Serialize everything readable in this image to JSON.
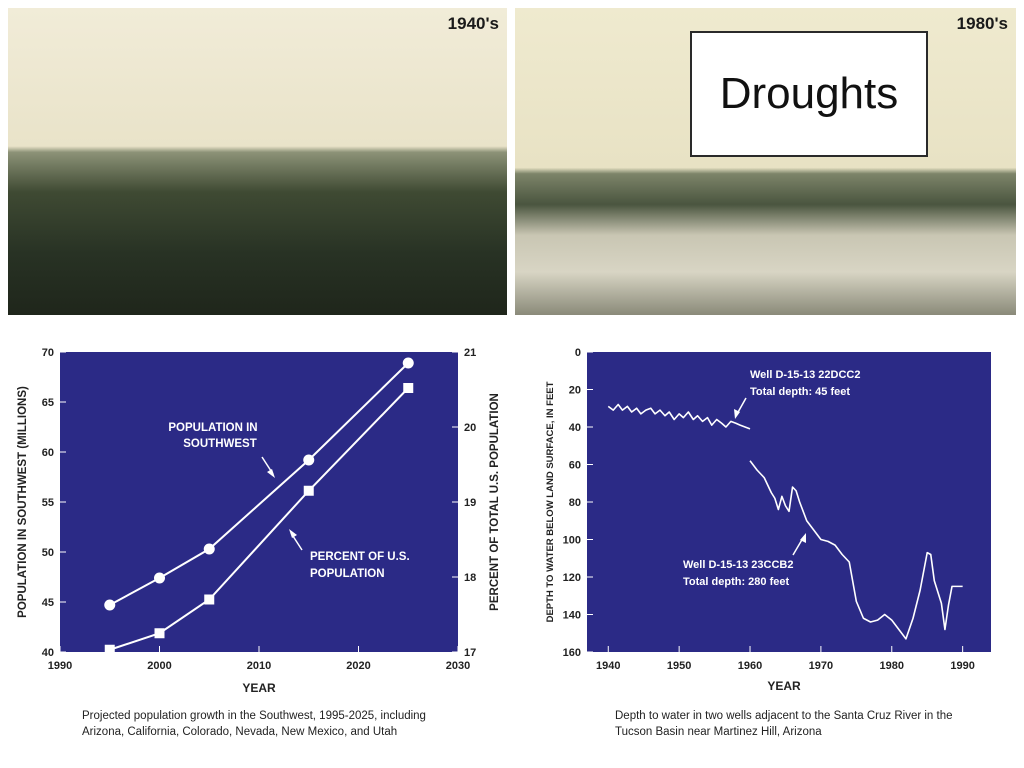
{
  "slide_title": "Droughts",
  "photos": [
    {
      "label": "1940's",
      "description_icon": "photo-landscape-1940s"
    },
    {
      "label": "1980's",
      "description_icon": "photo-landscape-1980s"
    }
  ],
  "colors": {
    "plot_bg": "#2b2a86",
    "line": "#ffffff"
  },
  "captions": {
    "left": [
      "Projected population growth in the Southwest, 1995-2025, including",
      "Arizona, California, Colorado, Nevada, New Mexico, and Utah"
    ],
    "right": [
      "Depth to water in two wells adjacent to the Santa Cruz River in the",
      "Tucson Basin near Martinez Hill, Arizona"
    ]
  },
  "chart_data": [
    {
      "type": "line",
      "xlabel": "YEAR",
      "ylabel": "POPULATION IN SOUTHWEST (MILLIONS)",
      "y2label": "PERCENT OF TOTAL U.S. POPULATION",
      "xlim": [
        1990,
        2030
      ],
      "ylim": [
        40,
        70
      ],
      "y2lim": [
        17,
        21
      ],
      "xticks": [
        "1990",
        "2000",
        "2010",
        "2020",
        "2030"
      ],
      "yticks": [
        "40",
        "45",
        "50",
        "55",
        "60",
        "65",
        "70"
      ],
      "y2ticks": [
        "17",
        "18",
        "19",
        "20",
        "21"
      ],
      "series": [
        {
          "name": "POPULATION IN SOUTHWEST",
          "axis": "left",
          "marker": "circle",
          "x": [
            1995,
            2000,
            2005,
            2015,
            2025
          ],
          "values": [
            44.7,
            47.4,
            50.3,
            59.2,
            68.9
          ]
        },
        {
          "name": "PERCENT OF U.S. POPULATION",
          "axis": "right",
          "marker": "square",
          "x": [
            1995,
            2000,
            2005,
            2015,
            2025
          ],
          "values": [
            17.03,
            17.25,
            17.7,
            19.15,
            20.52
          ]
        }
      ],
      "annotations": [
        {
          "lines": [
            "POPULATION IN",
            "SOUTHWEST"
          ],
          "series": 0
        },
        {
          "lines": [
            "PERCENT OF U.S.",
            "POPULATION"
          ],
          "series": 1
        }
      ],
      "grid": false
    },
    {
      "type": "line",
      "xlabel": "YEAR",
      "ylabel": "DEPTH TO WATER BELOW LAND SURFACE, IN FEET",
      "xlim": [
        1937,
        1994
      ],
      "ylim": [
        0,
        160
      ],
      "y_inverted": true,
      "xticks": [
        "1940",
        "1950",
        "1960",
        "1970",
        "1980",
        "1990"
      ],
      "yticks": [
        "0",
        "20",
        "40",
        "60",
        "80",
        "100",
        "120",
        "140",
        "160"
      ],
      "series": [
        {
          "name": "Well D-15-13 22DCC2",
          "x": [
            1940,
            1940.7,
            1941.4,
            1942,
            1942.7,
            1943.3,
            1944,
            1944.6,
            1945.3,
            1946,
            1946.6,
            1947.3,
            1948,
            1948.6,
            1949.3,
            1950,
            1950.6,
            1951.3,
            1952,
            1952.6,
            1953.3,
            1954,
            1954.6,
            1955.3,
            1956,
            1956.6,
            1957.3,
            1958,
            1958.6,
            1959.3,
            1960
          ],
          "values": [
            29,
            31,
            28,
            31,
            29,
            32,
            30,
            33,
            31,
            30,
            33,
            31,
            34,
            32,
            36,
            33,
            35,
            32,
            36,
            34,
            37,
            35,
            39,
            36,
            38,
            40,
            37,
            38,
            39,
            40,
            41
          ]
        },
        {
          "name": "Well D-15-13 23CCB2",
          "x": [
            1960,
            1961,
            1962,
            1963,
            1963.5,
            1964,
            1964.5,
            1965,
            1965.5,
            1966,
            1966.5,
            1967,
            1968,
            1969,
            1970,
            1971,
            1972,
            1973,
            1974,
            1975,
            1976,
            1977,
            1978,
            1979,
            1980,
            1981,
            1982,
            1983,
            1984,
            1985,
            1985.5,
            1986,
            1987,
            1987.5,
            1988,
            1988.5,
            1989,
            1990
          ],
          "values": [
            58,
            63,
            67,
            75,
            78,
            84,
            77,
            82,
            85,
            72,
            74,
            80,
            90,
            95,
            100,
            101,
            103,
            108,
            112,
            133,
            142,
            144,
            143,
            140,
            143,
            148,
            153,
            142,
            127,
            107,
            108,
            122,
            134,
            148,
            135,
            125,
            125,
            125
          ]
        }
      ],
      "annotations": [
        {
          "lines": [
            "Well D-15-13 22DCC2",
            "Total depth: 45 feet"
          ],
          "series": 0
        },
        {
          "lines": [
            "Well D-15-13 23CCB2",
            "Total depth: 280 feet"
          ],
          "series": 1
        }
      ],
      "grid": false
    }
  ]
}
